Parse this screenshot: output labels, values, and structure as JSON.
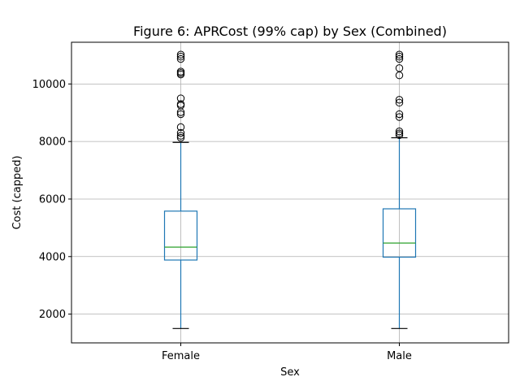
{
  "chart_data": {
    "type": "box",
    "title": "Figure 6: APRCost (99% cap) by Sex (Combined)",
    "xlabel": "Sex",
    "ylabel": "Cost (capped)",
    "categories": [
      "Female",
      "Male"
    ],
    "ylim": [
      1000,
      11450
    ],
    "yticks": [
      2000,
      4000,
      6000,
      8000,
      10000
    ],
    "ytick_labels": [
      "2000",
      "4000",
      "6000",
      "8000",
      "10000"
    ],
    "grid": true,
    "colors": {
      "box": "#1f77b4",
      "median": "#2ca02c",
      "caps": "#000000",
      "outliers": "#000000"
    },
    "series": [
      {
        "category": "Female",
        "whisker_low": 1500,
        "q1": 3880,
        "median": 4330,
        "q3": 5580,
        "whisker_high": 7970,
        "outliers": [
          8130,
          8200,
          8300,
          8500,
          8950,
          9020,
          9250,
          9300,
          9500,
          10330,
          10380,
          10430,
          10870,
          10950,
          11020
        ]
      },
      {
        "category": "Male",
        "whisker_low": 1500,
        "q1": 3980,
        "median": 4470,
        "q3": 5660,
        "whisker_high": 8130,
        "outliers": [
          8220,
          8280,
          8350,
          8850,
          8950,
          9350,
          9450,
          10300,
          10550,
          10870,
          10950,
          11020
        ]
      }
    ]
  }
}
